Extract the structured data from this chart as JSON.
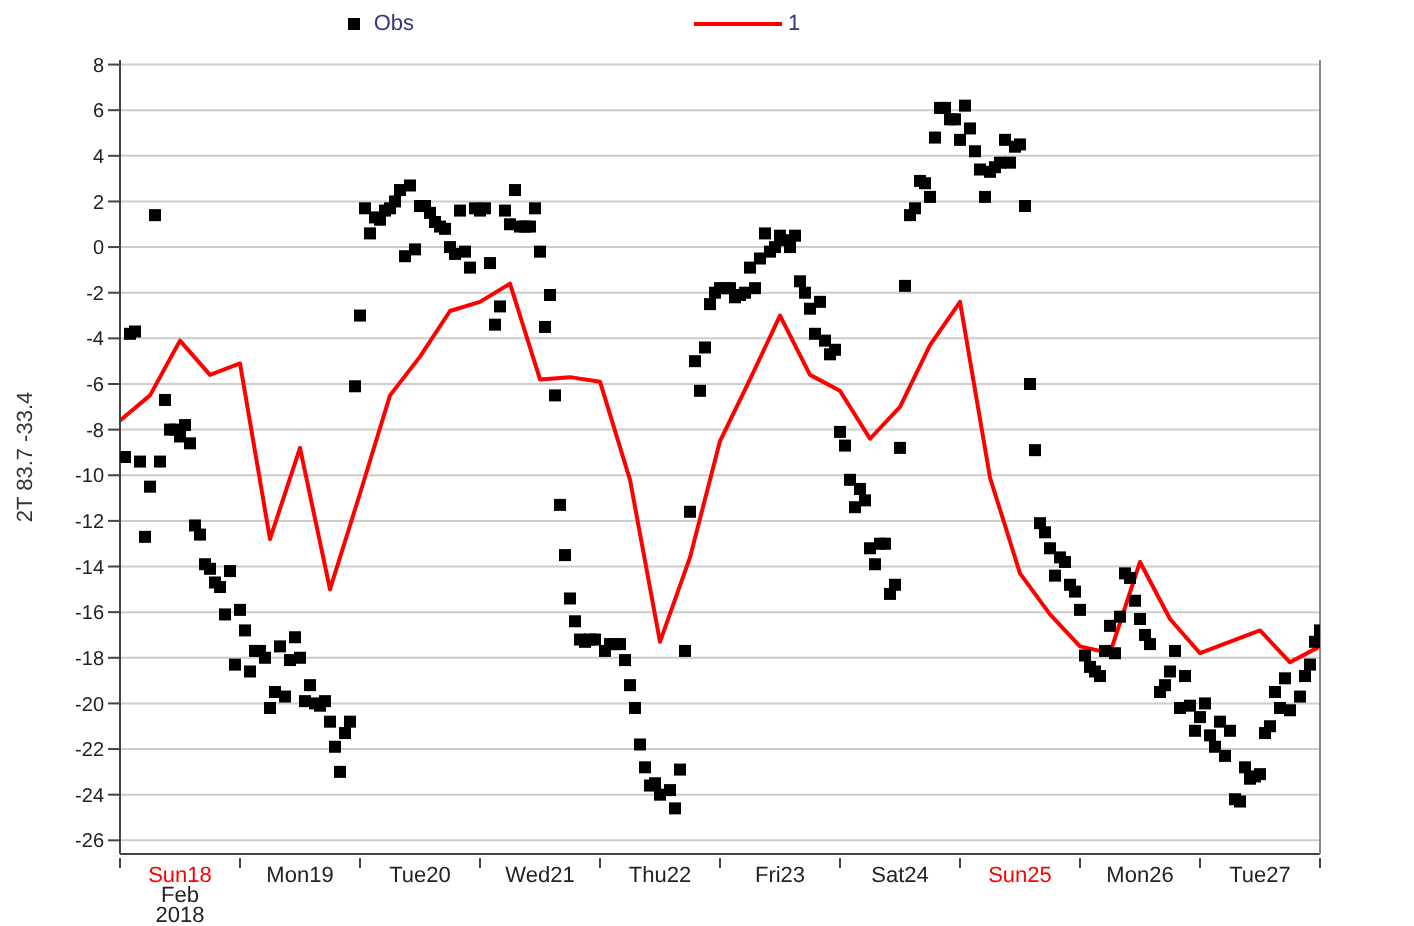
{
  "chart_data": {
    "type": "scatter",
    "ylabel": "2T 83.7 -33.4",
    "legend": "top",
    "grid": "y",
    "xlim": [
      "2018-02-18T00:00",
      "2018-02-28T00:00"
    ],
    "xticks": [
      {
        "value": "2018-02-18T00:00",
        "label": null
      },
      {
        "value": "2018-02-18T12:00",
        "label": "Sun18\nFeb\n2018"
      },
      {
        "value": "2018-02-19T00:00",
        "label": null
      },
      {
        "value": "2018-02-19T12:00",
        "label": "Mon19"
      },
      {
        "value": "2018-02-20T00:00",
        "label": null
      },
      {
        "value": "2018-02-20T12:00",
        "label": "Tue20"
      },
      {
        "value": "2018-02-21T00:00",
        "label": null
      },
      {
        "value": "2018-02-21T12:00",
        "label": "Wed21"
      },
      {
        "value": "2018-02-22T00:00",
        "label": null
      },
      {
        "value": "2018-02-22T12:00",
        "label": "Thu22"
      },
      {
        "value": "2018-02-23T00:00",
        "label": null
      },
      {
        "value": "2018-02-23T12:00",
        "label": "Fri23"
      },
      {
        "value": "2018-02-24T00:00",
        "label": null
      },
      {
        "value": "2018-02-24T12:00",
        "label": "Sat24"
      },
      {
        "value": "2018-02-25T00:00",
        "label": null
      },
      {
        "value": "2018-02-25T12:00",
        "label": "Sun25"
      },
      {
        "value": "2018-02-26T00:00",
        "label": null
      },
      {
        "value": "2018-02-26T12:00",
        "label": "Mon26"
      },
      {
        "value": "2018-02-27T00:00",
        "label": null
      },
      {
        "value": "2018-02-27T12:00",
        "label": "Tue27"
      },
      {
        "value": "2018-02-28T00:00",
        "label": null
      }
    ],
    "ylim": [
      -26.6,
      8.2
    ],
    "yticks": [
      -26,
      -24,
      -22,
      -20,
      -18,
      -16,
      -14,
      -12,
      -10,
      -8,
      -6,
      -4,
      -2,
      0,
      2,
      4,
      6,
      8
    ],
    "series": [
      {
        "name": "Obs",
        "marker": "square",
        "color": "#000000",
        "x": [
          "2018-02-18T01:00",
          "2018-02-18T02:00",
          "2018-02-18T03:00",
          "2018-02-18T04:00",
          "2018-02-18T05:00",
          "2018-02-18T06:00",
          "2018-02-18T07:00",
          "2018-02-18T08:00",
          "2018-02-18T09:00",
          "2018-02-18T10:00",
          "2018-02-18T11:00",
          "2018-02-18T12:00",
          "2018-02-18T13:00",
          "2018-02-18T14:00",
          "2018-02-18T15:00",
          "2018-02-18T16:00",
          "2018-02-18T17:00",
          "2018-02-18T18:00",
          "2018-02-18T19:00",
          "2018-02-18T20:00",
          "2018-02-18T21:00",
          "2018-02-18T22:00",
          "2018-02-18T23:00",
          "2018-02-19T00:00",
          "2018-02-19T01:00",
          "2018-02-19T02:00",
          "2018-02-19T03:00",
          "2018-02-19T04:00",
          "2018-02-19T05:00",
          "2018-02-19T06:00",
          "2018-02-19T07:00",
          "2018-02-19T08:00",
          "2018-02-19T09:00",
          "2018-02-19T10:00",
          "2018-02-19T11:00",
          "2018-02-19T12:00",
          "2018-02-19T13:00",
          "2018-02-19T14:00",
          "2018-02-19T15:00",
          "2018-02-19T16:00",
          "2018-02-19T17:00",
          "2018-02-19T18:00",
          "2018-02-19T19:00",
          "2018-02-19T20:00",
          "2018-02-19T21:00",
          "2018-02-19T22:00",
          "2018-02-19T23:00",
          "2018-02-20T00:00",
          "2018-02-20T01:00",
          "2018-02-20T02:00",
          "2018-02-20T03:00",
          "2018-02-20T04:00",
          "2018-02-20T05:00",
          "2018-02-20T06:00",
          "2018-02-20T07:00",
          "2018-02-20T08:00",
          "2018-02-20T09:00",
          "2018-02-20T10:00",
          "2018-02-20T11:00",
          "2018-02-20T12:00",
          "2018-02-20T13:00",
          "2018-02-20T14:00",
          "2018-02-20T15:00",
          "2018-02-20T16:00",
          "2018-02-20T17:00",
          "2018-02-20T18:00",
          "2018-02-20T19:00",
          "2018-02-20T20:00",
          "2018-02-20T21:00",
          "2018-02-20T22:00",
          "2018-02-20T23:00",
          "2018-02-21T00:00",
          "2018-02-21T01:00",
          "2018-02-21T02:00",
          "2018-02-21T03:00",
          "2018-02-21T04:00",
          "2018-02-21T05:00",
          "2018-02-21T06:00",
          "2018-02-21T07:00",
          "2018-02-21T08:00",
          "2018-02-21T09:00",
          "2018-02-21T10:00",
          "2018-02-21T11:00",
          "2018-02-21T12:00",
          "2018-02-21T13:00",
          "2018-02-21T14:00",
          "2018-02-21T15:00",
          "2018-02-21T16:00",
          "2018-02-21T17:00",
          "2018-02-21T18:00",
          "2018-02-21T19:00",
          "2018-02-21T20:00",
          "2018-02-21T21:00",
          "2018-02-21T22:00",
          "2018-02-21T23:00",
          "2018-02-22T01:00",
          "2018-02-22T02:00",
          "2018-02-22T03:00",
          "2018-02-22T04:00",
          "2018-02-22T05:00",
          "2018-02-22T06:00",
          "2018-02-22T07:00",
          "2018-02-22T08:00",
          "2018-02-22T09:00",
          "2018-02-22T10:00",
          "2018-02-22T11:00",
          "2018-02-22T12:00",
          "2018-02-22T14:00",
          "2018-02-22T15:00",
          "2018-02-22T16:00",
          "2018-02-22T17:00",
          "2018-02-22T18:00",
          "2018-02-22T19:00",
          "2018-02-22T20:00",
          "2018-02-22T21:00",
          "2018-02-22T22:00",
          "2018-02-22T23:00",
          "2018-02-23T00:00",
          "2018-02-23T01:00",
          "2018-02-23T02:00",
          "2018-02-23T03:00",
          "2018-02-23T04:00",
          "2018-02-23T05:00",
          "2018-02-23T06:00",
          "2018-02-23T07:00",
          "2018-02-23T08:00",
          "2018-02-23T09:00",
          "2018-02-23T10:00",
          "2018-02-23T11:00",
          "2018-02-23T12:00",
          "2018-02-23T13:00",
          "2018-02-23T14:00",
          "2018-02-23T15:00",
          "2018-02-23T16:00",
          "2018-02-23T17:00",
          "2018-02-23T18:00",
          "2018-02-23T19:00",
          "2018-02-23T20:00",
          "2018-02-23T21:00",
          "2018-02-23T22:00",
          "2018-02-23T23:00",
          "2018-02-24T00:00",
          "2018-02-24T01:00",
          "2018-02-24T02:00",
          "2018-02-24T03:00",
          "2018-02-24T04:00",
          "2018-02-24T05:00",
          "2018-02-24T06:00",
          "2018-02-24T07:00",
          "2018-02-24T08:00",
          "2018-02-24T09:00",
          "2018-02-24T10:00",
          "2018-02-24T11:00",
          "2018-02-24T12:00",
          "2018-02-24T13:00",
          "2018-02-24T14:00",
          "2018-02-24T15:00",
          "2018-02-24T16:00",
          "2018-02-24T17:00",
          "2018-02-24T18:00",
          "2018-02-24T19:00",
          "2018-02-24T20:00",
          "2018-02-24T21:00",
          "2018-02-24T22:00",
          "2018-02-24T23:00",
          "2018-02-25T00:00",
          "2018-02-25T01:00",
          "2018-02-25T02:00",
          "2018-02-25T03:00",
          "2018-02-25T04:00",
          "2018-02-25T05:00",
          "2018-02-25T06:00",
          "2018-02-25T07:00",
          "2018-02-25T08:00",
          "2018-02-25T09:00",
          "2018-02-25T10:00",
          "2018-02-25T11:00",
          "2018-02-25T12:00",
          "2018-02-25T13:00",
          "2018-02-25T14:00",
          "2018-02-25T15:00",
          "2018-02-25T16:00",
          "2018-02-25T17:00",
          "2018-02-25T18:00",
          "2018-02-25T19:00",
          "2018-02-25T20:00",
          "2018-02-25T21:00",
          "2018-02-25T22:00",
          "2018-02-25T23:00",
          "2018-02-26T00:00",
          "2018-02-26T01:00",
          "2018-02-26T02:00",
          "2018-02-26T03:00",
          "2018-02-26T04:00",
          "2018-02-26T05:00",
          "2018-02-26T06:00",
          "2018-02-26T07:00",
          "2018-02-26T08:00",
          "2018-02-26T09:00",
          "2018-02-26T10:00",
          "2018-02-26T11:00",
          "2018-02-26T12:00",
          "2018-02-26T13:00",
          "2018-02-26T14:00",
          "2018-02-26T16:00",
          "2018-02-26T17:00",
          "2018-02-26T18:00",
          "2018-02-26T19:00",
          "2018-02-26T20:00",
          "2018-02-26T21:00",
          "2018-02-26T22:00",
          "2018-02-26T23:00",
          "2018-02-27T00:00",
          "2018-02-27T01:00",
          "2018-02-27T02:00",
          "2018-02-27T03:00",
          "2018-02-27T04:00",
          "2018-02-27T05:00",
          "2018-02-27T06:00",
          "2018-02-27T07:00",
          "2018-02-27T08:00",
          "2018-02-27T09:00",
          "2018-02-27T10:00",
          "2018-02-27T11:00",
          "2018-02-27T12:00",
          "2018-02-27T13:00",
          "2018-02-27T14:00",
          "2018-02-27T15:00",
          "2018-02-27T16:00",
          "2018-02-27T17:00",
          "2018-02-27T18:00",
          "2018-02-27T20:00",
          "2018-02-27T21:00",
          "2018-02-27T22:00",
          "2018-02-27T23:00",
          "2018-02-28T00:00"
        ],
        "values": [
          -9.2,
          -3.8,
          -3.7,
          -9.4,
          -12.7,
          -10.5,
          1.4,
          -9.4,
          -6.7,
          -8.0,
          -8.0,
          -8.3,
          -7.8,
          -8.6,
          -12.2,
          -12.6,
          -13.9,
          -14.1,
          -14.7,
          -14.9,
          -16.1,
          -14.2,
          -18.3,
          -15.9,
          -16.8,
          -18.6,
          -17.7,
          -17.7,
          -18.0,
          -20.2,
          -19.5,
          -17.5,
          -19.7,
          -18.1,
          -17.1,
          -18.0,
          -19.9,
          -19.2,
          -20.0,
          -20.1,
          -19.9,
          -20.8,
          -21.9,
          -23.0,
          -21.3,
          -20.8,
          -6.1,
          -3.0,
          1.7,
          0.6,
          1.3,
          1.2,
          1.6,
          1.7,
          2.0,
          2.5,
          -0.4,
          2.7,
          -0.1,
          1.8,
          1.8,
          1.5,
          1.1,
          0.9,
          0.8,
          0.0,
          -0.3,
          1.6,
          -0.2,
          -0.9,
          1.7,
          1.6,
          1.7,
          -0.7,
          -3.4,
          -2.6,
          1.6,
          1.0,
          2.5,
          0.9,
          0.9,
          0.9,
          1.7,
          -0.2,
          -3.5,
          -2.1,
          -6.5,
          -11.3,
          -13.5,
          -15.4,
          -16.4,
          -17.2,
          -17.3,
          -17.2,
          -17.2,
          -17.7,
          -17.4,
          -17.4,
          -17.4,
          -18.1,
          -19.2,
          -20.2,
          -21.8,
          -22.8,
          -23.6,
          -23.5,
          -24.0,
          -23.8,
          -24.6,
          -22.9,
          -17.7,
          -11.6,
          -5.0,
          -6.3,
          -4.4,
          -2.5,
          -2.0,
          -1.8,
          -1.8,
          -1.8,
          -2.2,
          -2.1,
          -2.0,
          -0.9,
          -1.8,
          -0.5,
          0.6,
          -0.2,
          0.0,
          0.5,
          0.3,
          0.0,
          0.5,
          -1.5,
          -2.0,
          -2.7,
          -3.8,
          -2.4,
          -4.1,
          -4.7,
          -4.5,
          -8.1,
          -8.7,
          -10.2,
          -11.4,
          -10.6,
          -11.1,
          -13.2,
          -13.9,
          -13.0,
          -13.0,
          -15.2,
          -14.8,
          -8.8,
          -1.7,
          1.4,
          1.7,
          2.9,
          2.8,
          2.2,
          4.8,
          6.1,
          6.1,
          5.6,
          5.6,
          4.7,
          6.2,
          5.2,
          4.2,
          3.4,
          2.2,
          3.3,
          3.5,
          3.7,
          4.7,
          3.7,
          4.4,
          4.5,
          1.8,
          -6.0,
          -8.9,
          -12.1,
          -12.5,
          -13.2,
          -14.4,
          -13.6,
          -13.8,
          -14.8,
          -15.1,
          -15.9,
          -17.9,
          -18.4,
          -18.6,
          -18.8,
          -17.7,
          -16.6,
          -17.8,
          -16.2,
          -14.3,
          -14.5,
          -15.5,
          -16.3,
          -17.0,
          -17.4,
          -19.5,
          -19.2,
          -18.6,
          -17.7,
          -20.2,
          -18.8,
          -20.1,
          -21.2,
          -20.6,
          -20.0,
          -21.4,
          -21.9,
          -20.8,
          -22.3,
          -21.2,
          -24.2,
          -24.3,
          -22.8,
          -23.3,
          -23.2,
          -23.1,
          -21.3,
          -21.0,
          -19.5,
          -20.2,
          -18.9,
          -20.3,
          -19.7,
          -18.8,
          -18.3,
          -17.3,
          -16.8
        ]
      },
      {
        "name": "1",
        "type": "line",
        "marker": "none",
        "line_style": "solid",
        "color": "#ff0000",
        "x": [
          "2018-02-18T00:00",
          "2018-02-18T06:00",
          "2018-02-18T12:00",
          "2018-02-18T18:00",
          "2018-02-19T00:00",
          "2018-02-19T06:00",
          "2018-02-19T12:00",
          "2018-02-19T18:00",
          "2018-02-20T00:00",
          "2018-02-20T06:00",
          "2018-02-20T12:00",
          "2018-02-20T18:00",
          "2018-02-21T00:00",
          "2018-02-21T06:00",
          "2018-02-21T12:00",
          "2018-02-21T18:00",
          "2018-02-22T00:00",
          "2018-02-22T06:00",
          "2018-02-22T12:00",
          "2018-02-22T18:00",
          "2018-02-23T00:00",
          "2018-02-23T06:00",
          "2018-02-23T12:00",
          "2018-02-23T18:00",
          "2018-02-24T00:00",
          "2018-02-24T06:00",
          "2018-02-24T12:00",
          "2018-02-24T18:00",
          "2018-02-25T00:00",
          "2018-02-25T06:00",
          "2018-02-25T12:00",
          "2018-02-25T18:00",
          "2018-02-26T00:00",
          "2018-02-26T06:00",
          "2018-02-26T12:00",
          "2018-02-26T18:00",
          "2018-02-27T00:00",
          "2018-02-27T12:00",
          "2018-02-27T18:00",
          "2018-02-28T00:00"
        ],
        "values": [
          -7.6,
          -6.5,
          -4.1,
          -5.6,
          -5.1,
          -12.8,
          -8.8,
          -15.0,
          -10.8,
          -6.5,
          -4.8,
          -2.8,
          -2.4,
          -1.6,
          -5.8,
          -5.7,
          -5.9,
          -10.2,
          -17.3,
          -13.6,
          -8.5,
          -5.8,
          -3.0,
          -5.6,
          -6.3,
          -8.4,
          -7.0,
          -4.3,
          -2.4,
          -10.1,
          -14.3,
          -16.1,
          -17.5,
          -17.8,
          -13.8,
          -16.3,
          -17.8,
          -16.8,
          -18.2,
          -17.5
        ]
      }
    ]
  }
}
